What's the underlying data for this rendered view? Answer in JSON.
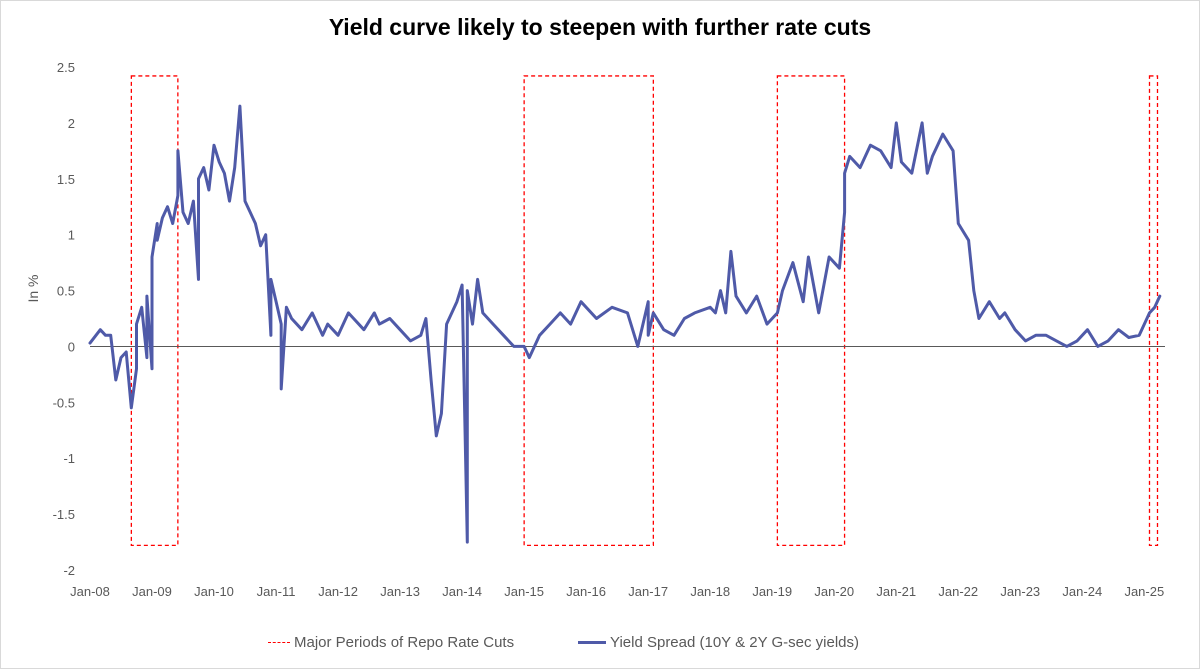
{
  "chart_data": {
    "type": "line",
    "title": "Yield curve likely to steepen with further rate cuts",
    "ylabel": "In %",
    "xlabel": "",
    "ylim": [
      -2,
      2.5
    ],
    "yticks": [
      "2.5",
      "2",
      "1.5",
      "1",
      "0.5",
      "0",
      "-0.5",
      "-1",
      "-1.5",
      "-2"
    ],
    "xticks": [
      "Jan-08",
      "Jan-09",
      "Jan-10",
      "Jan-11",
      "Jan-12",
      "Jan-13",
      "Jan-14",
      "Jan-15",
      "Jan-16",
      "Jan-17",
      "Jan-18",
      "Jan-19",
      "Jan-20",
      "Jan-21",
      "Jan-22",
      "Jan-23",
      "Jan-24",
      "Jan-25"
    ],
    "legend_position": "bottom",
    "grid": false,
    "colors": {
      "series": "#4f5aa8",
      "rate_cut_box": "#ff0000",
      "axis_text": "#595959"
    },
    "rate_cut_periods": [
      {
        "start": "Sep-08",
        "end": "Jun-09"
      },
      {
        "start": "Jan-15",
        "end": "Feb-17"
      },
      {
        "start": "Feb-19",
        "end": "Mar-20"
      },
      {
        "start": "Feb-25",
        "end": "Mar-25"
      }
    ],
    "legend": [
      {
        "label": "Major Periods of Repo Rate Cuts",
        "style": "dashed"
      },
      {
        "label": "Yield Spread (10Y & 2Y G-sec yields)",
        "style": "solid"
      }
    ],
    "series": [
      {
        "name": "Yield Spread (10Y & 2Y G-sec yields)",
        "x": [
          "Jan-08",
          "Mar-08",
          "Apr-08",
          "May-08",
          "Jun-08",
          "Jul-08",
          "Aug-08",
          "Sep-08",
          "Oct-08",
          "Oct-08",
          "Nov-08",
          "Dec-08",
          "Dec-08",
          "Jan-09",
          "Jan-09",
          "Feb-09",
          "Feb-09",
          "Mar-09",
          "Apr-09",
          "May-09",
          "Jun-09",
          "Jun-09",
          "Jul-09",
          "Aug-09",
          "Sep-09",
          "Oct-09",
          "Oct-09",
          "Nov-09",
          "Dec-09",
          "Jan-10",
          "Feb-10",
          "Mar-10",
          "Apr-10",
          "May-10",
          "Jun-10",
          "Jul-10",
          "Aug-10",
          "Sep-10",
          "Oct-10",
          "Nov-10",
          "Dec-10",
          "Dec-10",
          "Jan-11",
          "Feb-11",
          "Feb-11",
          "Mar-11",
          "Apr-11",
          "Jun-11",
          "Aug-11",
          "Oct-11",
          "Nov-11",
          "Jan-12",
          "Mar-12",
          "Apr-12",
          "Jun-12",
          "Aug-12",
          "Sep-12",
          "Nov-12",
          "Jan-13",
          "Mar-13",
          "May-13",
          "Jun-13",
          "Jul-13",
          "Aug-13",
          "Sep-13",
          "Oct-13",
          "Dec-13",
          "Jan-14",
          "Feb-14",
          "Feb-14",
          "Mar-14",
          "Apr-14",
          "May-14",
          "Jul-14",
          "Sep-14",
          "Nov-14",
          "Jan-15",
          "Feb-15",
          "Apr-15",
          "Jun-15",
          "Aug-15",
          "Oct-15",
          "Dec-15",
          "Mar-16",
          "Jun-16",
          "Sep-16",
          "Nov-16",
          "Jan-17",
          "Jan-17",
          "Feb-17",
          "Apr-17",
          "Jun-17",
          "Aug-17",
          "Oct-17",
          "Jan-18",
          "Feb-18",
          "Mar-18",
          "Apr-18",
          "May-18",
          "Jun-18",
          "Aug-18",
          "Oct-18",
          "Dec-18",
          "Feb-19",
          "Mar-19",
          "May-19",
          "Jul-19",
          "Aug-19",
          "Oct-19",
          "Dec-19",
          "Feb-20",
          "Mar-20",
          "Mar-20",
          "Apr-20",
          "Jun-20",
          "Aug-20",
          "Oct-20",
          "Dec-20",
          "Jan-21",
          "Feb-21",
          "Apr-21",
          "Jun-21",
          "Jul-21",
          "Aug-21",
          "Oct-21",
          "Dec-21",
          "Jan-22",
          "Mar-22",
          "Apr-22",
          "May-22",
          "Jul-22",
          "Sep-22",
          "Oct-22",
          "Dec-22",
          "Feb-23",
          "Apr-23",
          "Jun-23",
          "Aug-23",
          "Oct-23",
          "Dec-23",
          "Feb-24",
          "Apr-24",
          "Jun-24",
          "Aug-24",
          "Oct-24",
          "Dec-24",
          "Feb-25",
          "Mar-25",
          "Apr-25"
        ],
        "values": [
          0.03,
          0.15,
          0.1,
          0.1,
          -0.3,
          -0.1,
          -0.05,
          -0.55,
          -0.2,
          0.2,
          0.35,
          -0.1,
          0.45,
          -0.2,
          0.8,
          1.1,
          0.95,
          1.15,
          1.25,
          1.1,
          1.35,
          1.75,
          1.2,
          1.1,
          1.3,
          0.6,
          1.5,
          1.6,
          1.4,
          1.8,
          1.65,
          1.55,
          1.3,
          1.6,
          2.15,
          1.3,
          1.2,
          1.1,
          0.9,
          1.0,
          0.1,
          0.6,
          0.4,
          0.2,
          -0.38,
          0.35,
          0.25,
          0.15,
          0.3,
          0.1,
          0.2,
          0.1,
          0.3,
          0.25,
          0.15,
          0.3,
          0.2,
          0.25,
          0.15,
          0.05,
          0.1,
          0.25,
          -0.3,
          -0.8,
          -0.6,
          0.2,
          0.4,
          0.55,
          -1.75,
          0.5,
          0.2,
          0.6,
          0.3,
          0.2,
          0.1,
          0.0,
          0.0,
          -0.1,
          0.1,
          0.2,
          0.3,
          0.2,
          0.4,
          0.25,
          0.35,
          0.3,
          0.0,
          0.4,
          0.1,
          0.3,
          0.15,
          0.1,
          0.25,
          0.3,
          0.35,
          0.3,
          0.5,
          0.3,
          0.85,
          0.45,
          0.3,
          0.45,
          0.2,
          0.3,
          0.5,
          0.75,
          0.4,
          0.8,
          0.3,
          0.8,
          0.7,
          1.2,
          1.55,
          1.7,
          1.6,
          1.8,
          1.75,
          1.6,
          2.0,
          1.65,
          1.55,
          2.0,
          1.55,
          1.7,
          1.9,
          1.75,
          1.1,
          0.95,
          0.5,
          0.25,
          0.4,
          0.25,
          0.3,
          0.15,
          0.05,
          0.1,
          0.1,
          0.05,
          0.0,
          0.05,
          0.15,
          0.0,
          0.05,
          0.15,
          0.08,
          0.1,
          0.3,
          0.35,
          0.45
        ]
      }
    ]
  }
}
